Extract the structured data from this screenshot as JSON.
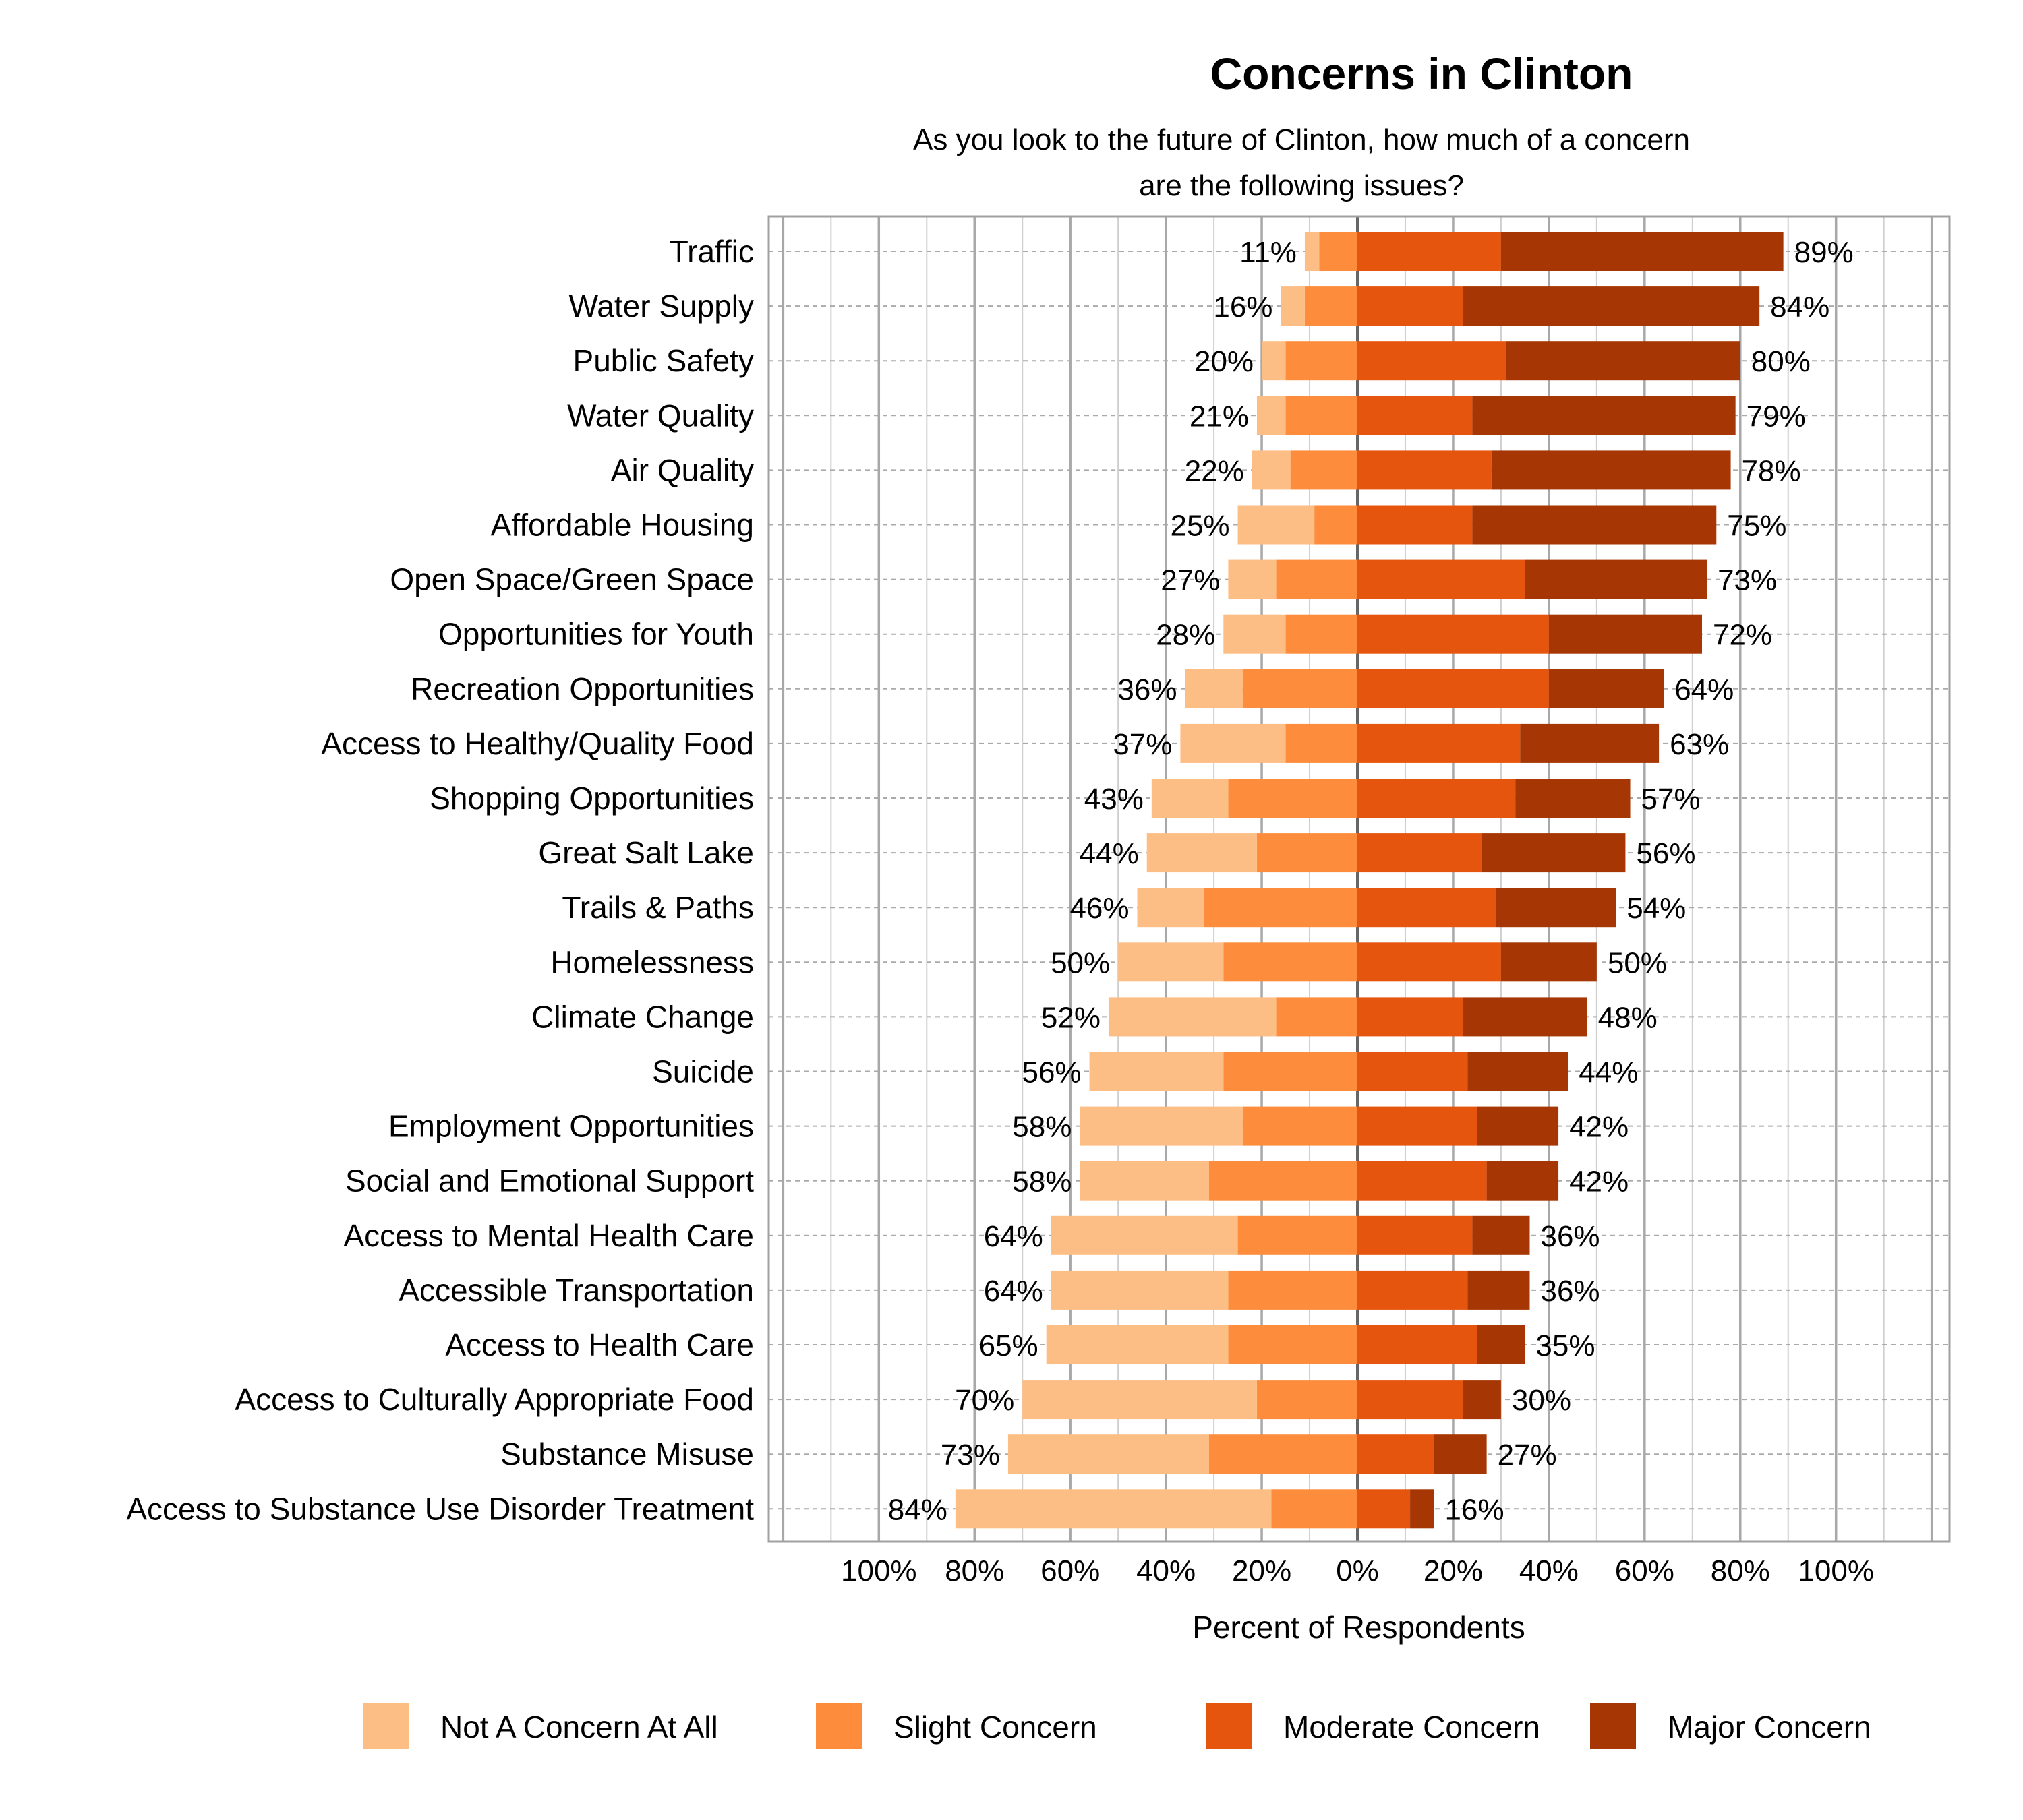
{
  "chart_data": {
    "type": "bar",
    "orientation": "horizontal-diverging-stacked",
    "title": "Concerns in Clinton",
    "subtitle_lines": [
      "As you look to the future of Clinton, how much of a concern",
      "are the following issues?"
    ],
    "xlabel": "Percent of Respondents",
    "ylabel": "",
    "xlim": [
      -124,
      124
    ],
    "x_tick_labels": [
      "100%",
      "80%",
      "60%",
      "40%",
      "20%",
      "0%",
      "20%",
      "40%",
      "60%",
      "80%",
      "100%"
    ],
    "x_tick_values": [
      -100,
      -80,
      -60,
      -40,
      -20,
      0,
      20,
      40,
      60,
      80,
      100
    ],
    "grid": true,
    "legend_position": "bottom",
    "categories": [
      "Traffic",
      "Water Supply",
      "Public Safety",
      "Water Quality",
      "Air Quality",
      "Affordable Housing",
      "Open Space/Green Space",
      "Opportunities for Youth",
      "Recreation Opportunities",
      "Access to Healthy/Quality Food",
      "Shopping Opportunities",
      "Great Salt Lake",
      "Trails & Paths",
      "Homelessness",
      "Climate Change",
      "Suicide",
      "Employment Opportunities",
      "Social and Emotional Support",
      "Access to Mental Health Care",
      "Accessible Transportation",
      "Access to Health Care",
      "Access to Culturally Appropriate Food",
      "Substance Misuse",
      "Access to Substance Use Disorder Treatment"
    ],
    "series": [
      {
        "name": "Not A Concern At All",
        "side": "left",
        "color": "#fdbe85",
        "values": [
          3,
          5,
          5,
          6,
          8,
          16,
          10,
          13,
          12,
          22,
          16,
          23,
          14,
          22,
          35,
          28,
          34,
          27,
          39,
          37,
          38,
          49,
          42,
          66
        ]
      },
      {
        "name": "Slight Concern",
        "side": "left",
        "color": "#fd8d3c",
        "values": [
          8,
          11,
          15,
          15,
          14,
          9,
          17,
          15,
          24,
          15,
          27,
          21,
          32,
          28,
          17,
          28,
          24,
          31,
          25,
          27,
          27,
          21,
          31,
          18
        ]
      },
      {
        "name": "Moderate Concern",
        "side": "right",
        "color": "#e6550d",
        "values": [
          30,
          22,
          31,
          24,
          28,
          24,
          35,
          40,
          40,
          34,
          33,
          26,
          29,
          30,
          22,
          23,
          25,
          27,
          24,
          23,
          25,
          22,
          16,
          11
        ]
      },
      {
        "name": "Major Concern",
        "side": "right",
        "color": "#a63603",
        "values": [
          59,
          62,
          49,
          55,
          50,
          51,
          38,
          32,
          24,
          29,
          24,
          30,
          25,
          20,
          26,
          21,
          17,
          15,
          12,
          13,
          10,
          8,
          11,
          5
        ]
      }
    ],
    "left_total_labels": [
      "11%",
      "16%",
      "20%",
      "21%",
      "22%",
      "25%",
      "27%",
      "28%",
      "36%",
      "37%",
      "43%",
      "44%",
      "46%",
      "50%",
      "52%",
      "56%",
      "58%",
      "58%",
      "64%",
      "64%",
      "65%",
      "70%",
      "73%",
      "84%"
    ],
    "right_total_labels": [
      "89%",
      "84%",
      "80%",
      "79%",
      "78%",
      "75%",
      "73%",
      "72%",
      "64%",
      "63%",
      "57%",
      "56%",
      "54%",
      "50%",
      "48%",
      "44%",
      "42%",
      "42%",
      "36%",
      "36%",
      "35%",
      "30%",
      "27%",
      "16%"
    ]
  }
}
